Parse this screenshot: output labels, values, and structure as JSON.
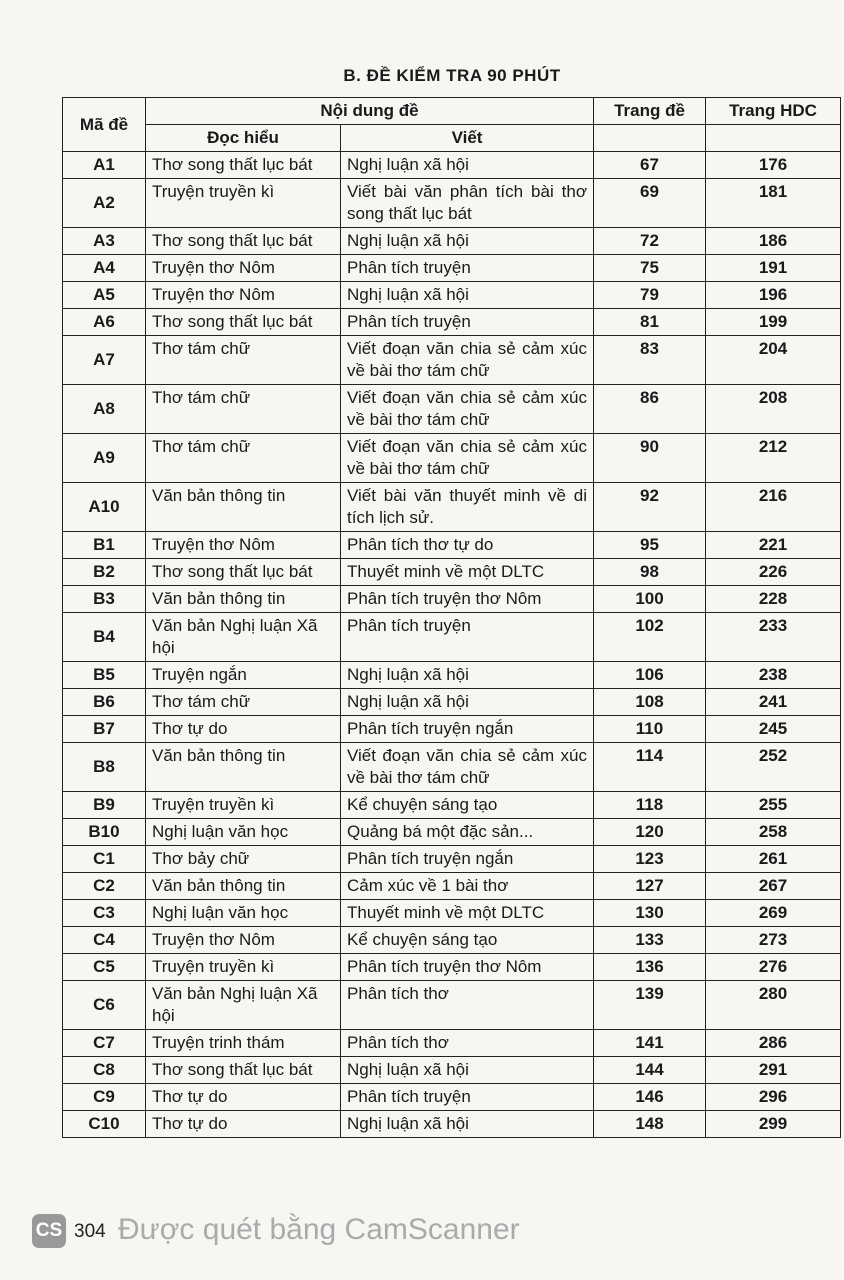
{
  "title": "B. ĐỀ KIỂM TRA 90 PHÚT",
  "headers": {
    "code": "Mã đề",
    "content": "Nội dung đề",
    "reading": "Đọc hiểu",
    "writing": "Viết",
    "page": "Trang đề",
    "answer_page": "Trang HDC"
  },
  "rows": [
    [
      "A1",
      "Thơ song thất lục bát",
      "Nghị luận xã hội",
      "67",
      "176"
    ],
    [
      "A2",
      "Truyện truyền kì",
      "Viết bài văn phân tích bài thơ song thất lục bát",
      "69",
      "181"
    ],
    [
      "A3",
      "Thơ song thất lục bát",
      "Nghị luận xã hội",
      "72",
      "186"
    ],
    [
      "A4",
      "Truyện thơ Nôm",
      "Phân tích truyện",
      "75",
      "191"
    ],
    [
      "A5",
      "Truyện thơ Nôm",
      "Nghị luận xã hội",
      "79",
      "196"
    ],
    [
      "A6",
      "Thơ song thất lục bát",
      "Phân tích truyện",
      "81",
      "199"
    ],
    [
      "A7",
      "Thơ tám chữ",
      "Viết đoạn văn chia sẻ cảm xúc về bài thơ tám chữ",
      "83",
      "204"
    ],
    [
      "A8",
      "Thơ tám chữ",
      "Viết đoạn văn chia sẻ cảm xúc về bài thơ tám chữ",
      "86",
      "208"
    ],
    [
      "A9",
      "Thơ tám chữ",
      "Viết đoạn văn chia sẻ cảm xúc về bài thơ tám chữ",
      "90",
      "212"
    ],
    [
      "A10",
      "Văn bản thông tin",
      "Viết bài văn thuyết minh về di tích lịch sử.",
      "92",
      "216"
    ],
    [
      "B1",
      "Truyện thơ Nôm",
      "Phân tích thơ tự do",
      "95",
      "221"
    ],
    [
      "B2",
      "Thơ song thất lục bát",
      "Thuyết minh về một DLTC",
      "98",
      "226"
    ],
    [
      "B3",
      "Văn bản thông tin",
      "Phân tích truyện thơ Nôm",
      "100",
      "228"
    ],
    [
      "B4",
      "Văn bản Nghị luận Xã hội",
      "Phân tích truyện",
      "102",
      "233"
    ],
    [
      "B5",
      "Truyện ngắn",
      "Nghị luận xã hội",
      "106",
      "238"
    ],
    [
      "B6",
      "Thơ tám chữ",
      "Nghị luận xã hội",
      "108",
      "241"
    ],
    [
      "B7",
      "Thơ tự do",
      "Phân tích truyện ngắn",
      "110",
      "245"
    ],
    [
      "B8",
      "Văn bản thông tin",
      "Viết đoạn văn chia sẻ cảm xúc về bài thơ tám chữ",
      "114",
      "252"
    ],
    [
      "B9",
      "Truyện truyền kì",
      "Kể chuyện sáng tạo",
      "118",
      "255"
    ],
    [
      "B10",
      "Nghị luận văn học",
      "Quảng bá một đặc sản...",
      "120",
      "258"
    ],
    [
      "C1",
      "Thơ bảy chữ",
      "Phân tích truyện ngắn",
      "123",
      "261"
    ],
    [
      "C2",
      "Văn bản thông tin",
      "Cảm xúc về 1 bài thơ",
      "127",
      "267"
    ],
    [
      "C3",
      "Nghị luận văn học",
      "Thuyết minh về một DLTC",
      "130",
      "269"
    ],
    [
      "C4",
      "Truyện thơ Nôm",
      "Kể chuyện sáng tạo",
      "133",
      "273"
    ],
    [
      "C5",
      "Truyện truyền kì",
      "Phân tích truyện thơ Nôm",
      "136",
      "276"
    ],
    [
      "C6",
      "Văn bản Nghị luận Xã hội",
      "Phân tích thơ",
      "139",
      "280"
    ],
    [
      "C7",
      "Truyện trinh thám",
      "Phân tích thơ",
      "141",
      "286"
    ],
    [
      "C8",
      "Thơ song thất lục bát",
      "Nghị luận xã hội",
      "144",
      "291"
    ],
    [
      "C9",
      "Thơ tự do",
      "Phân tích truyện",
      "146",
      "296"
    ],
    [
      "C10",
      "Thơ tự do",
      "Nghị luận xã hội",
      "148",
      "299"
    ]
  ],
  "page_number": "304",
  "watermark": "Được quét bằng CamScanner",
  "watermark_logo": "CS"
}
